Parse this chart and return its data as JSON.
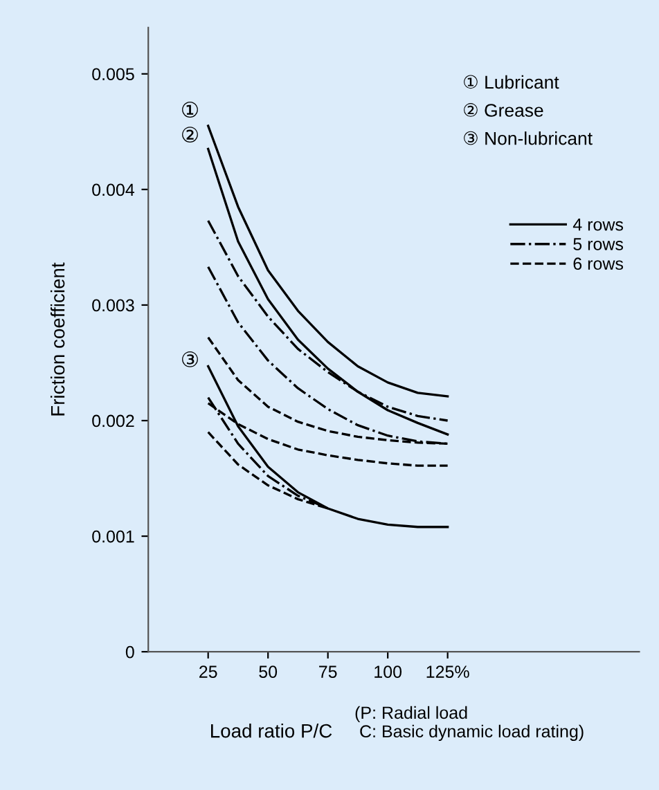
{
  "chart_data": {
    "type": "line",
    "xlabel": "Load ratio P/C",
    "ylabel": "Friction coefficient",
    "x": [
      25,
      37.5,
      50,
      62.5,
      75,
      87.5,
      100,
      112.5,
      125
    ],
    "xlim": [
      0,
      205
    ],
    "ylim": [
      0,
      0.0054
    ],
    "xticks": [
      25,
      50,
      75,
      100,
      {
        "value": 125,
        "label": "125%"
      }
    ],
    "yticks": [
      0,
      0.001,
      0.002,
      0.003,
      0.004,
      0.005
    ],
    "grid": false,
    "legend": "top right",
    "marker": "none",
    "series": [
      {
        "name": "4 rows",
        "color": "#000000",
        "line_style": "solid",
        "values": [
          0.00455,
          0.00385,
          0.0033,
          0.00295,
          0.00268,
          0.00247,
          0.00233,
          0.00224,
          0.00221
        ]
      },
      {
        "name": "5 rows",
        "color": "#000000",
        "line_style": "dashdot",
        "values": [
          0.00373,
          0.00325,
          0.0029,
          0.00262,
          0.00242,
          0.00225,
          0.00212,
          0.00204,
          0.002
        ]
      },
      {
        "name": "6 rows",
        "color": "#000000",
        "line_style": "dashed",
        "values": [
          0.00272,
          0.00235,
          0.00212,
          0.00199,
          0.00191,
          0.00186,
          0.00183,
          0.00181,
          0.0018
        ]
      },
      {
        "color": "#000000",
        "line_style": "solid",
        "values": [
          0.00435,
          0.00355,
          0.00305,
          0.0027,
          0.00245,
          0.00225,
          0.00209,
          0.00198,
          0.00188
        ]
      },
      {
        "color": "#000000",
        "line_style": "dashdot",
        "values": [
          0.00333,
          0.00285,
          0.00252,
          0.00228,
          0.0021,
          0.00196,
          0.00187,
          0.00182,
          0.0018
        ]
      },
      {
        "color": "#000000",
        "line_style": "dashed",
        "values": [
          0.00215,
          0.00197,
          0.00184,
          0.00175,
          0.0017,
          0.00166,
          0.00163,
          0.00161,
          0.00161
        ]
      },
      {
        "color": "#000000",
        "line_style": "solid",
        "values": [
          0.00247,
          0.00195,
          0.0016,
          0.00138,
          0.00124,
          0.00115,
          0.0011,
          0.00108,
          0.00108
        ]
      },
      {
        "color": "#000000",
        "line_style": "dashdot",
        "values": [
          0.0022,
          0.0018,
          0.00152,
          0.00135,
          0.00124,
          null,
          null,
          null,
          null
        ]
      },
      {
        "color": "#000000",
        "line_style": "dashed",
        "values": [
          0.0019,
          0.00162,
          0.00144,
          0.00132,
          0.00124,
          null,
          null,
          null,
          null
        ]
      }
    ],
    "annotations": [
      "①",
      "②",
      "③",
      "① Lubricant",
      "② Grease",
      "③ Non-lubricant",
      "(P: Radial load\n C: Basic dynamic load rating)"
    ]
  }
}
